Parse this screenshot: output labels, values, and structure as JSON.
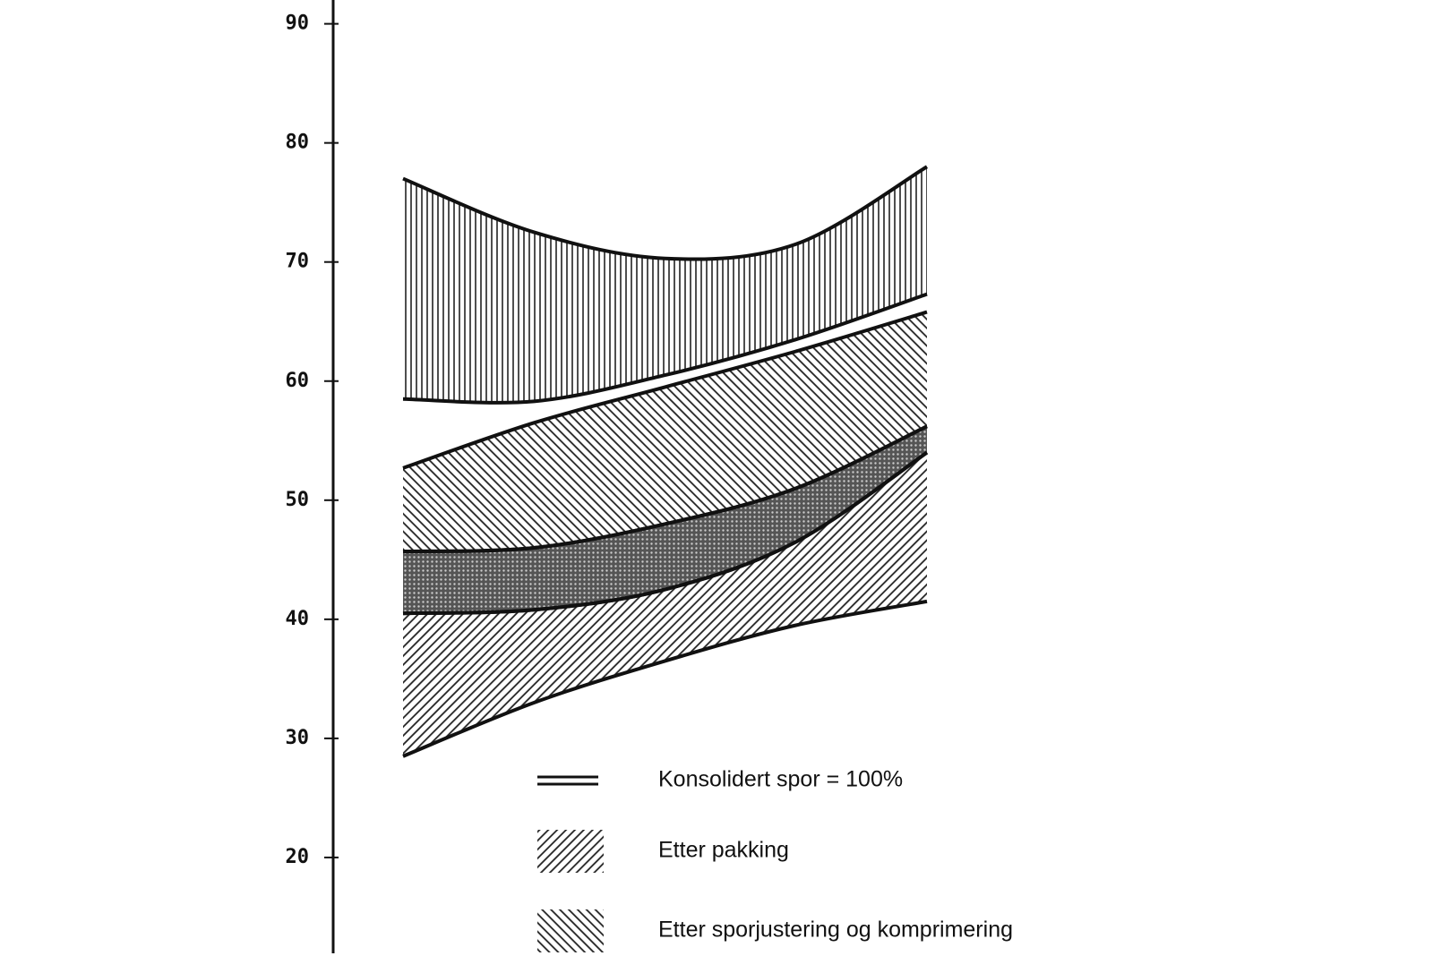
{
  "chart_data": {
    "type": "band",
    "categories": [
      null,
      null,
      null,
      null,
      null
    ],
    "ylim": [
      10,
      92
    ],
    "yticks": [
      20,
      30,
      40,
      50,
      60,
      70,
      80,
      90
    ],
    "series": [
      {
        "pattern": "vertical",
        "upper": [
          77,
          72.5,
          70.3,
          71.5,
          78
        ],
        "lower": [
          58.5,
          58.3,
          60.5,
          63.5,
          67.3
        ]
      },
      {
        "pattern": "back",
        "upper": [
          52.7,
          56.5,
          59.5,
          62.5,
          65.8
        ],
        "lower": [
          45.7,
          46,
          48,
          51,
          56.2
        ]
      },
      {
        "pattern": "cross",
        "upper": [
          45.7,
          46,
          48,
          51,
          56.2
        ],
        "lower": [
          40.5,
          40.8,
          42.5,
          46.5,
          54
        ]
      },
      {
        "pattern": "forward",
        "upper": [
          40.5,
          40.8,
          42.5,
          46.5,
          54
        ],
        "lower": [
          28.5,
          33,
          36.5,
          39.5,
          41.5
        ]
      }
    ],
    "legend": [
      {
        "label": "Konsolidert spor = 100%",
        "symbol": "double-line"
      },
      {
        "label": "Etter pakking",
        "symbol": "forward"
      },
      {
        "label": "Etter sporjustering og komprimering",
        "symbol": "back"
      }
    ]
  }
}
